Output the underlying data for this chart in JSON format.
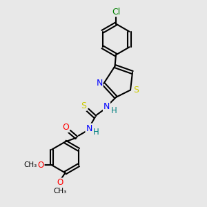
{
  "background_color": "#e8e8e8",
  "atom_colors": {
    "C": "#000000",
    "N": "#0000ff",
    "O": "#ff0000",
    "S": "#cccc00",
    "Cl": "#008000",
    "H": "#008080"
  },
  "bond_color": "#000000",
  "bond_width": 1.5,
  "font_size": 9
}
